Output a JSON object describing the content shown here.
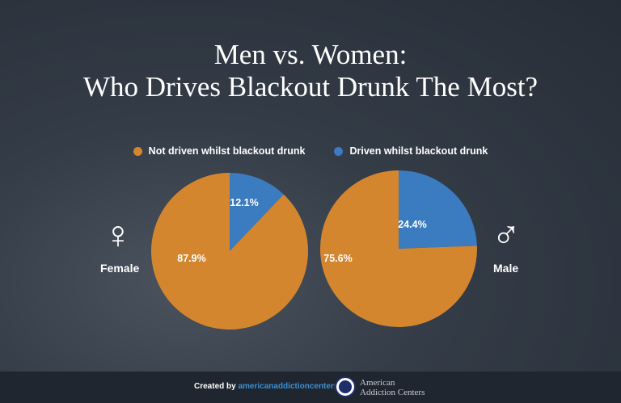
{
  "title_line1": "Men vs. Women:",
  "title_line2": "Who Drives Blackout Drunk The Most?",
  "colors": {
    "not_driven": "#D4862F",
    "driven": "#3B7BBF",
    "background": "#2a323d"
  },
  "chart_data": [
    {
      "type": "pie",
      "group": "Female",
      "icon": "female-symbol",
      "legend_placement": "top",
      "slices": [
        {
          "name": "Driven whilst blackout drunk",
          "value": 12.1,
          "label": "12.1%"
        },
        {
          "name": "Not driven whilst blackout drunk",
          "value": 87.9,
          "label": "87.9%"
        }
      ]
    },
    {
      "type": "pie",
      "group": "Male",
      "icon": "male-symbol",
      "legend_placement": "top",
      "slices": [
        {
          "name": "Driven whilst blackout drunk",
          "value": 24.4,
          "label": "24.4%"
        },
        {
          "name": "Not driven whilst blackout drunk",
          "value": 75.6,
          "label": "75.6%"
        }
      ]
    }
  ],
  "legend": [
    "Not driven whilst blackout drunk",
    "Driven whilst blackout drunk"
  ],
  "footer": {
    "created_by": "Created by",
    "link": "americanaddictioncenters.org",
    "logo_line1": "American",
    "logo_line2": "Addiction Centers"
  }
}
